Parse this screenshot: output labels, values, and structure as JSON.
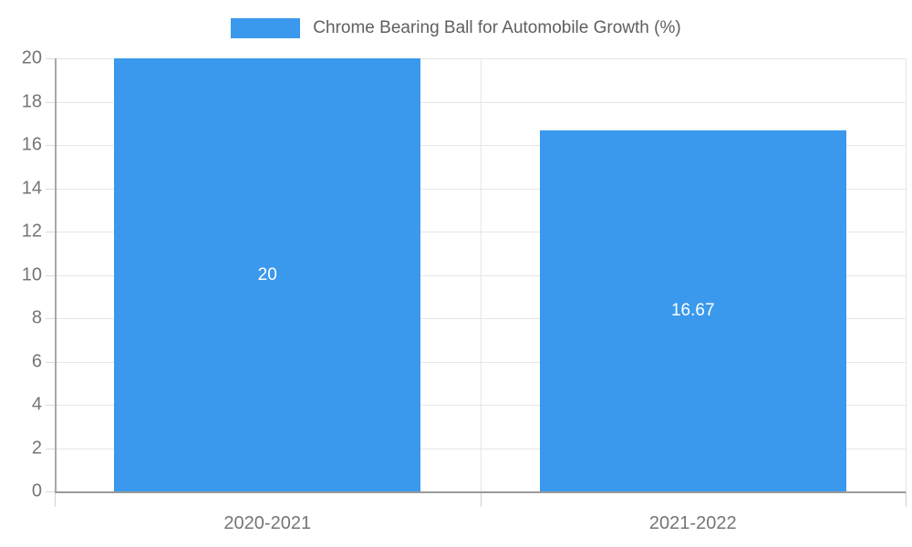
{
  "legend": {
    "series_label": "Chrome Bearing Ball for Automobile Growth (%)"
  },
  "chart_data": {
    "type": "bar",
    "title": "Chrome Bearing Ball for Automobile Growth (%)",
    "categories": [
      "2020-2021",
      "2021-2022"
    ],
    "values": [
      20,
      16.67
    ],
    "data_labels": [
      "20",
      "16.67"
    ],
    "xlabel": "",
    "ylabel": "",
    "ylim": [
      0,
      20
    ],
    "y_tick_step": 2,
    "y_ticks": [
      0,
      2,
      4,
      6,
      8,
      10,
      12,
      14,
      16,
      18,
      20
    ],
    "grid": true,
    "legend_position": "top-center",
    "colors": {
      "bar": "#3A99EC",
      "grid": "#E6E6E6",
      "baseline": "#9A9A9A",
      "axis_line": "#A8A8A8",
      "tick_label": "#757575",
      "legend_text": "#5F5F5F",
      "data_label": "#FFFFFF",
      "background": "#FFFFFF"
    }
  }
}
